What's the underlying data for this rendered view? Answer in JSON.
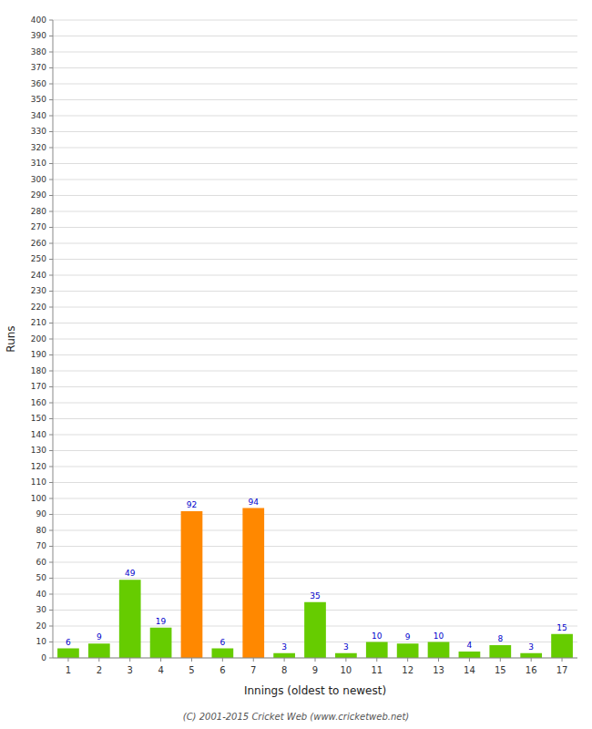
{
  "chart_data": {
    "type": "bar",
    "categories": [
      "1",
      "2",
      "3",
      "4",
      "5",
      "6",
      "7",
      "8",
      "9",
      "10",
      "11",
      "12",
      "13",
      "14",
      "15",
      "16",
      "17"
    ],
    "values": [
      6,
      9,
      49,
      19,
      92,
      6,
      94,
      3,
      35,
      3,
      10,
      9,
      10,
      4,
      8,
      3,
      15
    ],
    "colors": [
      "#66cc00",
      "#66cc00",
      "#66cc00",
      "#66cc00",
      "#ff8800",
      "#66cc00",
      "#ff8800",
      "#66cc00",
      "#66cc00",
      "#66cc00",
      "#66cc00",
      "#66cc00",
      "#66cc00",
      "#66cc00",
      "#66cc00",
      "#66cc00",
      "#66cc00"
    ],
    "x_label": "Innings (oldest to newest)",
    "y_label": "Runs",
    "annotations": [
      "(C) 2001-2015 Cricket Web (www.cricketweb.net)"
    ],
    "ylim": [
      0,
      400
    ],
    "yticks": [
      0,
      10,
      20,
      30,
      40,
      50,
      60,
      70,
      80,
      90,
      100,
      110,
      120,
      130,
      140,
      150,
      160,
      170,
      180,
      190,
      200,
      210,
      220,
      230,
      240,
      250,
      260,
      270,
      280,
      290,
      300,
      310,
      320,
      330,
      340,
      350,
      360,
      370,
      380,
      390,
      400
    ],
    "grid": true,
    "data_labels": true
  }
}
